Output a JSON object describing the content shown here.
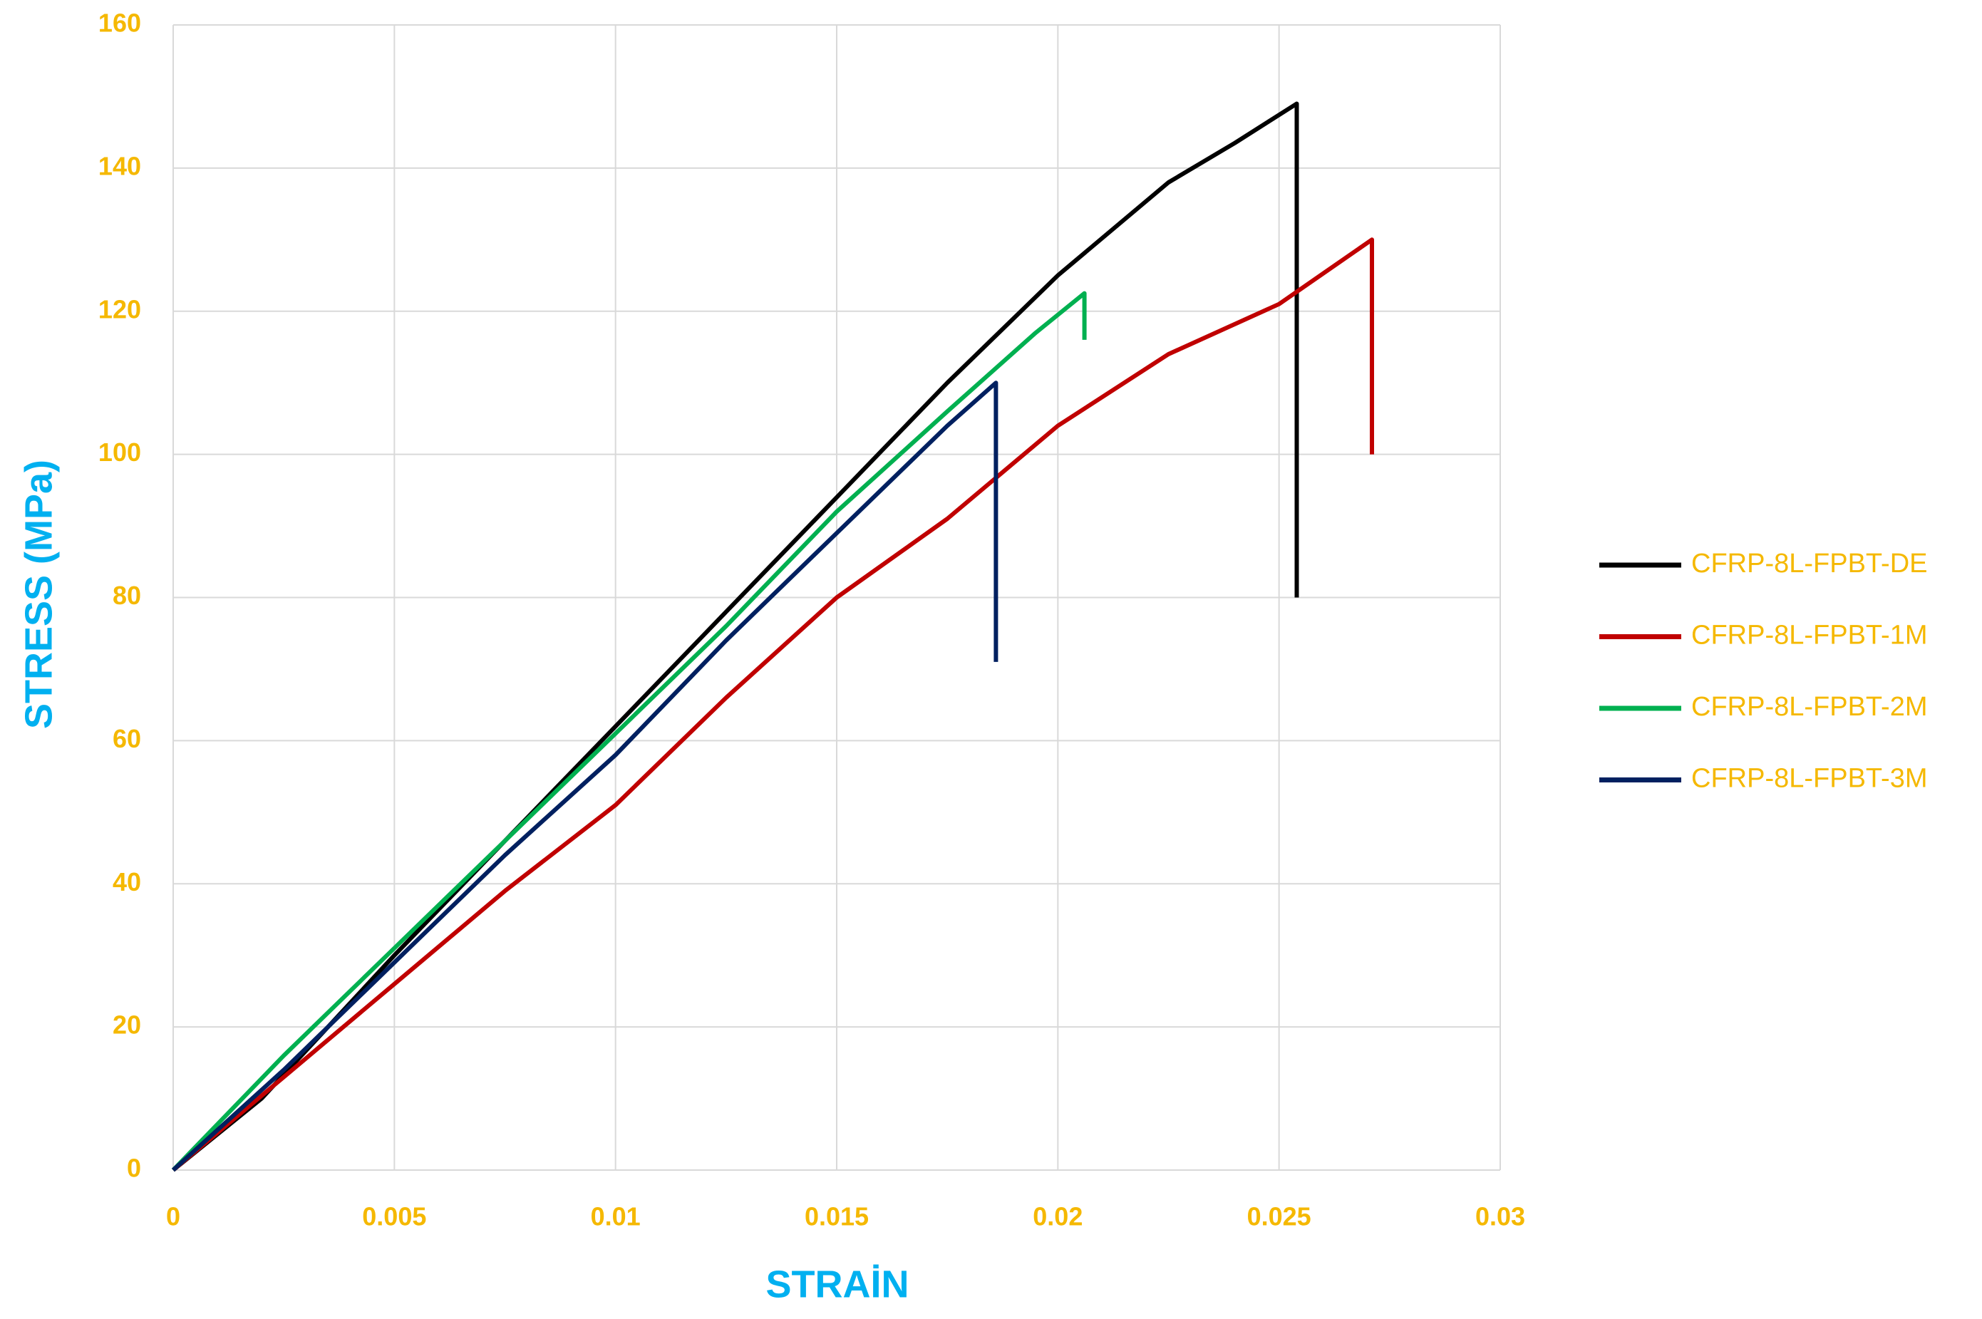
{
  "chart_data": {
    "type": "line",
    "x_label": "STRAİN",
    "y_label": "STRESS (MPa)",
    "xlim": [
      0,
      0.03
    ],
    "xticks": [
      0,
      0.005,
      0.01,
      0.015,
      0.02,
      0.025,
      0.03
    ],
    "ylim": [
      0,
      160
    ],
    "yticks": [
      0,
      20,
      40,
      60,
      80,
      100,
      120,
      140,
      160
    ],
    "grid": true,
    "legend": "right",
    "series": [
      {
        "name": "CFRP-8L-FPBT-DE",
        "color": "#000000",
        "x": [
          0,
          0.002,
          0.005,
          0.0075,
          0.01,
          0.0125,
          0.015,
          0.0175,
          0.02,
          0.0225,
          0.024,
          0.0254,
          0.0254
        ],
        "values": [
          0,
          10,
          30,
          46,
          62,
          78,
          94,
          110,
          125,
          138,
          143.5,
          149,
          80
        ]
      },
      {
        "name": "CFRP-8L-FPBT-1M",
        "color": "#c00000",
        "x": [
          0,
          0.0025,
          0.005,
          0.0075,
          0.01,
          0.0125,
          0.015,
          0.0175,
          0.02,
          0.0225,
          0.025,
          0.0271,
          0.0271
        ],
        "values": [
          0,
          13,
          26,
          39,
          51,
          66,
          80,
          91,
          104,
          114,
          121,
          130,
          100
        ]
      },
      {
        "name": "CFRP-8L-FPBT-2M",
        "color": "#00b050",
        "x": [
          0,
          0.0025,
          0.005,
          0.0075,
          0.01,
          0.0125,
          0.015,
          0.0175,
          0.0195,
          0.0206,
          0.0206
        ],
        "values": [
          0,
          16,
          31,
          46,
          61,
          76,
          92,
          106,
          117,
          122.5,
          116
        ]
      },
      {
        "name": "CFRP-8L-FPBT-3M",
        "color": "#002060",
        "x": [
          0,
          0.0025,
          0.005,
          0.0075,
          0.01,
          0.0125,
          0.015,
          0.0175,
          0.0186,
          0.0186
        ],
        "values": [
          0,
          14,
          29,
          44,
          58,
          74,
          89,
          104,
          110,
          71
        ]
      }
    ]
  }
}
